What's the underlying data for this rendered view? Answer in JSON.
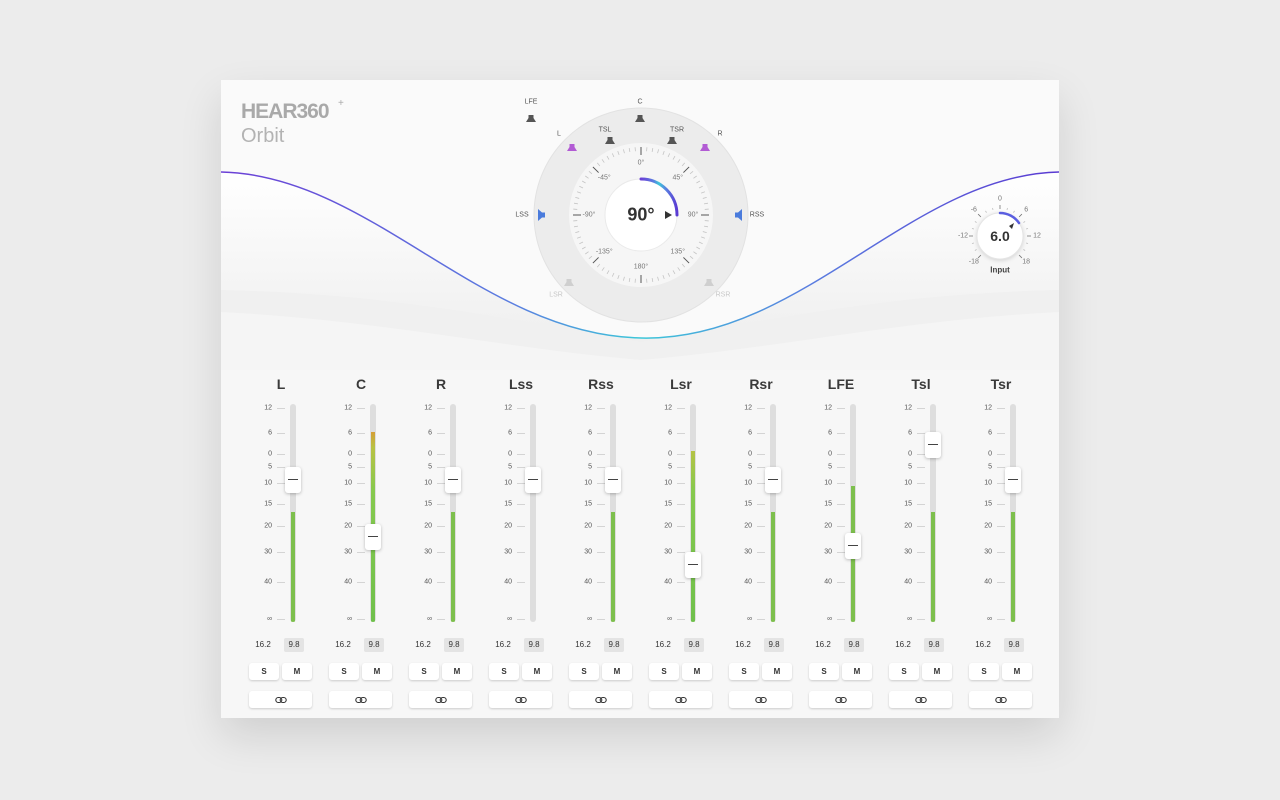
{
  "brand": {
    "name": "HEAR360",
    "plus": "+",
    "product": "Orbit"
  },
  "orbit": {
    "readout": "90°",
    "degree_labels": [
      "0°",
      "45°",
      "90°",
      "135°",
      "180°",
      "-135°",
      "-90°",
      "-45°"
    ],
    "speakers": [
      {
        "id": "lfe",
        "label": "LFE",
        "color": "#555555",
        "active": true
      },
      {
        "id": "c",
        "label": "C",
        "color": "#555555",
        "active": true
      },
      {
        "id": "l",
        "label": "L",
        "color": "#b25bd4",
        "active": true
      },
      {
        "id": "r",
        "label": "R",
        "color": "#b25bd4",
        "active": true
      },
      {
        "id": "tsl",
        "label": "TSL",
        "color": "#555555",
        "active": true
      },
      {
        "id": "tsr",
        "label": "TSR",
        "color": "#555555",
        "active": true
      },
      {
        "id": "lss",
        "label": "LSS",
        "color": "#4a7bdc",
        "active": true
      },
      {
        "id": "rss",
        "label": "RSS",
        "color": "#4a7bdc",
        "active": true
      },
      {
        "id": "lsr",
        "label": "LSR",
        "color": "#cfcfcf",
        "active": false
      },
      {
        "id": "rsr",
        "label": "RSR",
        "color": "#cfcfcf",
        "active": false
      }
    ]
  },
  "input": {
    "value": "6.0",
    "caption": "Input",
    "ticks": [
      "-18",
      "-12",
      "-6",
      "0",
      "6",
      "12",
      "18"
    ]
  },
  "scale": [
    "12",
    "6",
    "0",
    "5",
    "10",
    "15",
    "20",
    "30",
    "40",
    "∞"
  ],
  "link_icon": "link-icon",
  "channels": [
    {
      "name": "L",
      "peak": "16.2",
      "level": "9.8",
      "solo": "S",
      "mute": "M",
      "fader": 0.35,
      "meter": 0.51,
      "hot": false
    },
    {
      "name": "C",
      "peak": "16.2",
      "level": "9.8",
      "solo": "S",
      "mute": "M",
      "fader": 0.61,
      "meter": 0.88,
      "hot": true
    },
    {
      "name": "R",
      "peak": "16.2",
      "level": "9.8",
      "solo": "S",
      "mute": "M",
      "fader": 0.35,
      "meter": 0.51,
      "hot": false
    },
    {
      "name": "Lss",
      "peak": "16.2",
      "level": "9.8",
      "solo": "S",
      "mute": "M",
      "fader": 0.35,
      "meter": 0.0,
      "hot": false
    },
    {
      "name": "Rss",
      "peak": "16.2",
      "level": "9.8",
      "solo": "S",
      "mute": "M",
      "fader": 0.35,
      "meter": 0.51,
      "hot": false
    },
    {
      "name": "Lsr",
      "peak": "16.2",
      "level": "9.8",
      "solo": "S",
      "mute": "M",
      "fader": 0.74,
      "meter": 0.79,
      "hot": true
    },
    {
      "name": "Rsr",
      "peak": "16.2",
      "level": "9.8",
      "solo": "S",
      "mute": "M",
      "fader": 0.35,
      "meter": 0.51,
      "hot": false
    },
    {
      "name": "LFE",
      "peak": "16.2",
      "level": "9.8",
      "solo": "S",
      "mute": "M",
      "fader": 0.65,
      "meter": 0.63,
      "hot": false
    },
    {
      "name": "Tsl",
      "peak": "16.2",
      "level": "9.8",
      "solo": "S",
      "mute": "M",
      "fader": 0.19,
      "meter": 0.51,
      "hot": false
    },
    {
      "name": "Tsr",
      "peak": "16.2",
      "level": "9.8",
      "solo": "S",
      "mute": "M",
      "fader": 0.35,
      "meter": 0.51,
      "hot": false
    }
  ]
}
